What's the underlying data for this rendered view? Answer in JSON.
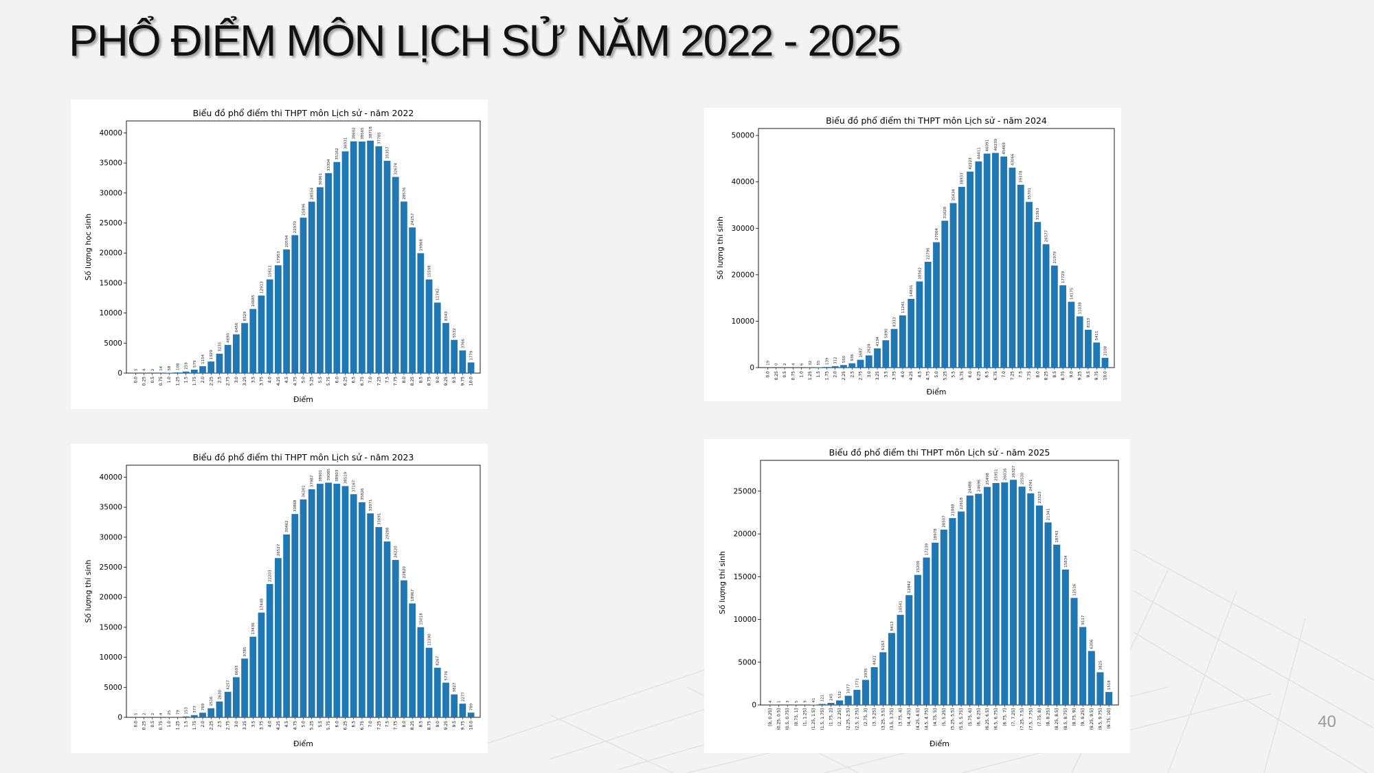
{
  "slide": {
    "title": "PHỔ ĐIỂM MÔN LỊCH SỬ NĂM 2022 - 2025",
    "page_number": "40"
  },
  "colors": {
    "bar": "#1f77b4",
    "title_text": "#111111",
    "page_number": "#9a9a9a"
  },
  "chart_data": [
    {
      "type": "bar",
      "title": "Biểu đồ phổ điểm thi THPT môn Lịch sử - năm 2022",
      "xlabel": "Điểm",
      "ylabel": "Số lượng học sinh",
      "ylim": [
        0,
        42000
      ],
      "yticks": [
        0,
        5000,
        10000,
        15000,
        20000,
        25000,
        30000,
        35000,
        40000
      ],
      "categories": [
        "0.0",
        "0.25",
        "0.5",
        "0.75",
        "1.0",
        "1.25",
        "1.5",
        "1.75",
        "2.0",
        "2.25",
        "2.5",
        "2.75",
        "3.0",
        "3.25",
        "3.5",
        "3.75",
        "4.0",
        "4.25",
        "4.5",
        "4.75",
        "5.0",
        "5.25",
        "5.5",
        "5.75",
        "6.0",
        "6.25",
        "6.5",
        "6.75",
        "7.0",
        "7.25",
        "7.5",
        "7.75",
        "8.0",
        "8.25",
        "8.5",
        "8.75",
        "9.0",
        "9.25",
        "9.5",
        "9.75",
        "10.0"
      ],
      "values": [
        5,
        4,
        2,
        14,
        58,
        108,
        259,
        579,
        1154,
        1929,
        3235,
        4690,
        6456,
        8329,
        10685,
        12913,
        15611,
        17953,
        20594,
        22970,
        25896,
        28554,
        30961,
        33304,
        35162,
        36931,
        38602,
        38565,
        38718,
        37785,
        35357,
        32674,
        28576,
        24257,
        19968,
        15598,
        11742,
        8343,
        5532,
        3766,
        1779
      ]
    },
    {
      "type": "bar",
      "title": "Biểu đồ phổ điểm thi THPT môn Lịch sử - năm 2024",
      "xlabel": "Điểm",
      "ylabel": "Số lượng thí sinh",
      "ylim": [
        0,
        51500
      ],
      "yticks": [
        0,
        10000,
        20000,
        30000,
        40000,
        50000
      ],
      "categories": [
        "0.0",
        "0.25",
        "0.5",
        "0.75",
        "1.0",
        "1.25",
        "1.5",
        "1.75",
        "2.0",
        "2.25",
        "2.5",
        "2.75",
        "3.0",
        "3.25",
        "3.5",
        "3.75",
        "4.0",
        "4.25",
        "4.5",
        "4.75",
        "5.0",
        "5.25",
        "5.5",
        "5.75",
        "6.0",
        "6.25",
        "6.5",
        "6.75",
        "7.0",
        "7.25",
        "7.5",
        "7.75",
        "8.0",
        "8.25",
        "8.5",
        "8.75",
        "9.0",
        "9.25",
        "9.5",
        "9.75",
        "10.0"
      ],
      "values": [
        19,
        0,
        2,
        4,
        6,
        32,
        55,
        139,
        312,
        550,
        936,
        1687,
        2624,
        4134,
        5890,
        8333,
        11241,
        14801,
        18562,
        22790,
        27004,
        31628,
        35434,
        38933,
        42223,
        44411,
        46091,
        46239,
        45469,
        43066,
        39378,
        35701,
        31363,
        26577,
        21979,
        17729,
        14175,
        11038,
        8153,
        5411,
        2108
      ]
    },
    {
      "type": "bar",
      "title": "Biểu đồ phổ điểm thi THPT môn Lịch sử - năm 2023",
      "xlabel": "Điểm",
      "ylabel": "Số lượng thí sinh",
      "ylim": [
        0,
        42000
      ],
      "yticks": [
        0,
        5000,
        10000,
        15000,
        20000,
        25000,
        30000,
        35000,
        40000
      ],
      "categories": [
        "0.0",
        "0.25",
        "0.5",
        "0.75",
        "1.0",
        "1.25",
        "1.5",
        "1.75",
        "2.0",
        "2.25",
        "2.5",
        "2.75",
        "3.0",
        "3.25",
        "3.5",
        "3.75",
        "4.0",
        "4.25",
        "4.5",
        "4.75",
        "5.0",
        "5.25",
        "5.5",
        "5.75",
        "6.0",
        "6.25",
        "6.5",
        "6.75",
        "7.0",
        "7.25",
        "7.5",
        "7.75",
        "8.0",
        "8.25",
        "8.5",
        "8.75",
        "9.0",
        "9.25",
        "9.5",
        "9.75",
        "10.0"
      ],
      "values": [
        5,
        2,
        2,
        4,
        25,
        79,
        153,
        373,
        769,
        1516,
        2630,
        4257,
        6693,
        9785,
        13436,
        17448,
        22203,
        26527,
        30462,
        33868,
        36301,
        37987,
        38901,
        39085,
        38903,
        38519,
        37167,
        35826,
        33971,
        31691,
        29288,
        26220,
        22820,
        18967,
        15018,
        11590,
        8267,
        5776,
        3827,
        2277,
        789
      ]
    },
    {
      "type": "bar",
      "title": "Biểu đồ phổ điểm thi THPT môn Lịch sử - năm 2025",
      "xlabel": "Điểm",
      "ylabel": "Số lượng thí sinh",
      "ylim": [
        0,
        28600
      ],
      "yticks": [
        0,
        5000,
        10000,
        15000,
        20000,
        25000
      ],
      "categories": [
        "[0, 0.25]",
        "(0.25, 0.5]",
        "(0.5, 0.75]",
        "(0.75, 1]",
        "(1, 1.25]",
        "(1.25, 1.5]",
        "(1.5, 1.75]",
        "(1.75, 2]",
        "(2, 2.25]",
        "(2.25, 2.5]",
        "(2.5, 2.75]",
        "(2.75, 3]",
        "(3, 3.25]",
        "(3.25, 3.5]",
        "(3.5, 3.75]",
        "(3.75, 4]",
        "(4, 4.25]",
        "(4.25, 4.5]",
        "(4.5, 4.75]",
        "(4.75, 5]",
        "(5, 5.25]",
        "(5.25, 5.5]",
        "(5.5, 5.75]",
        "(5.75, 6]",
        "(6, 6.25]",
        "(6.25, 6.5]",
        "(6.5, 6.75]",
        "(6.75, 7]",
        "(7, 7.25]",
        "(7.25, 7.5]",
        "(7.5, 7.75]",
        "(7.75, 8]",
        "(8, 8.25]",
        "(8.25, 8.5]",
        "(8.5, 8.75]",
        "(8.75, 9]",
        "(9, 9.25]",
        "(9.25, 9.5]",
        "(9.5, 9.75]",
        "(9.75, 10]"
      ],
      "values": [
        4,
        1,
        3,
        5,
        9,
        41,
        121,
        245,
        532,
        1077,
        1771,
        2935,
        4421,
        6163,
        8413,
        10541,
        12842,
        15209,
        17239,
        18978,
        20507,
        21848,
        22618,
        24488,
        24696,
        25498,
        25951,
        26016,
        26327,
        25530,
        24741,
        23323,
        21341,
        18743,
        15834,
        12516,
        9117,
        6306,
        3825,
        1518
      ]
    }
  ]
}
